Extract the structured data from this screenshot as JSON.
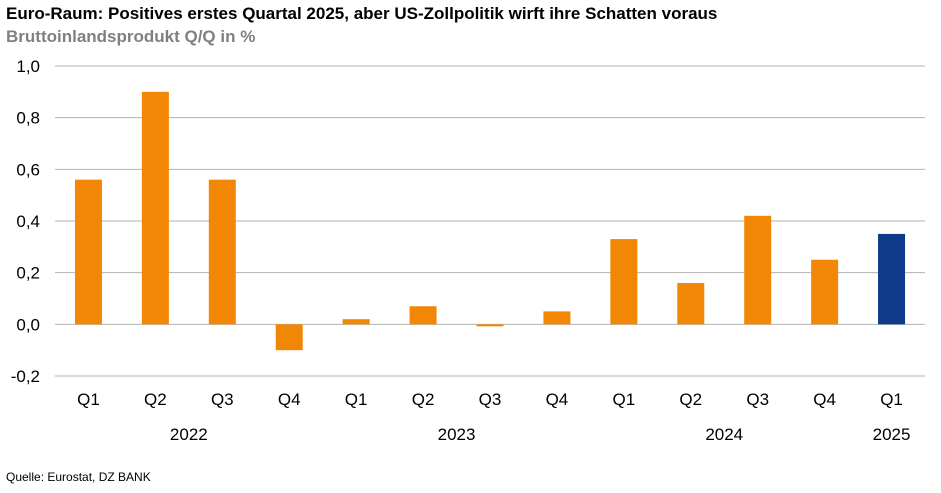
{
  "title": "Euro-Raum: Positives erstes Quartal 2025, aber US-Zollpolitik wirft ihre Schatten voraus",
  "subtitle": "Bruttoinlandsprodukt Q/Q in %",
  "source": "Quelle: Eurostat, DZ BANK",
  "colors": {
    "bar": "#F28705",
    "highlight": "#0F3A8A",
    "grid": "#B3B3B3"
  },
  "chart_data": {
    "type": "bar",
    "title": "Euro-Raum: Positives erstes Quartal 2025, aber US-Zollpolitik wirft ihre Schatten voraus",
    "ylabel": "Bruttoinlandsprodukt Q/Q in %",
    "xlabel": "",
    "categories": [
      "Q1",
      "Q2",
      "Q3",
      "Q4",
      "Q1",
      "Q2",
      "Q3",
      "Q4",
      "Q1",
      "Q2",
      "Q3",
      "Q4",
      "Q1"
    ],
    "years": [
      {
        "label": "2022",
        "quarters": 4
      },
      {
        "label": "2023",
        "quarters": 4
      },
      {
        "label": "2024",
        "quarters": 4
      },
      {
        "label": "2025",
        "quarters": 1
      }
    ],
    "values": [
      0.56,
      0.9,
      0.56,
      -0.1,
      0.02,
      0.07,
      0.0,
      0.05,
      0.33,
      0.16,
      0.42,
      0.25,
      0.35
    ],
    "highlight_index": 12,
    "ylim": [
      -0.2,
      1.0
    ],
    "yticks": [
      -0.2,
      0.0,
      0.2,
      0.4,
      0.6,
      0.8,
      1.0
    ],
    "ytick_labels": [
      "-0,2",
      "0,0",
      "0,2",
      "0,4",
      "0,6",
      "0,8",
      "1,0"
    ],
    "grid": true,
    "legend": false
  }
}
